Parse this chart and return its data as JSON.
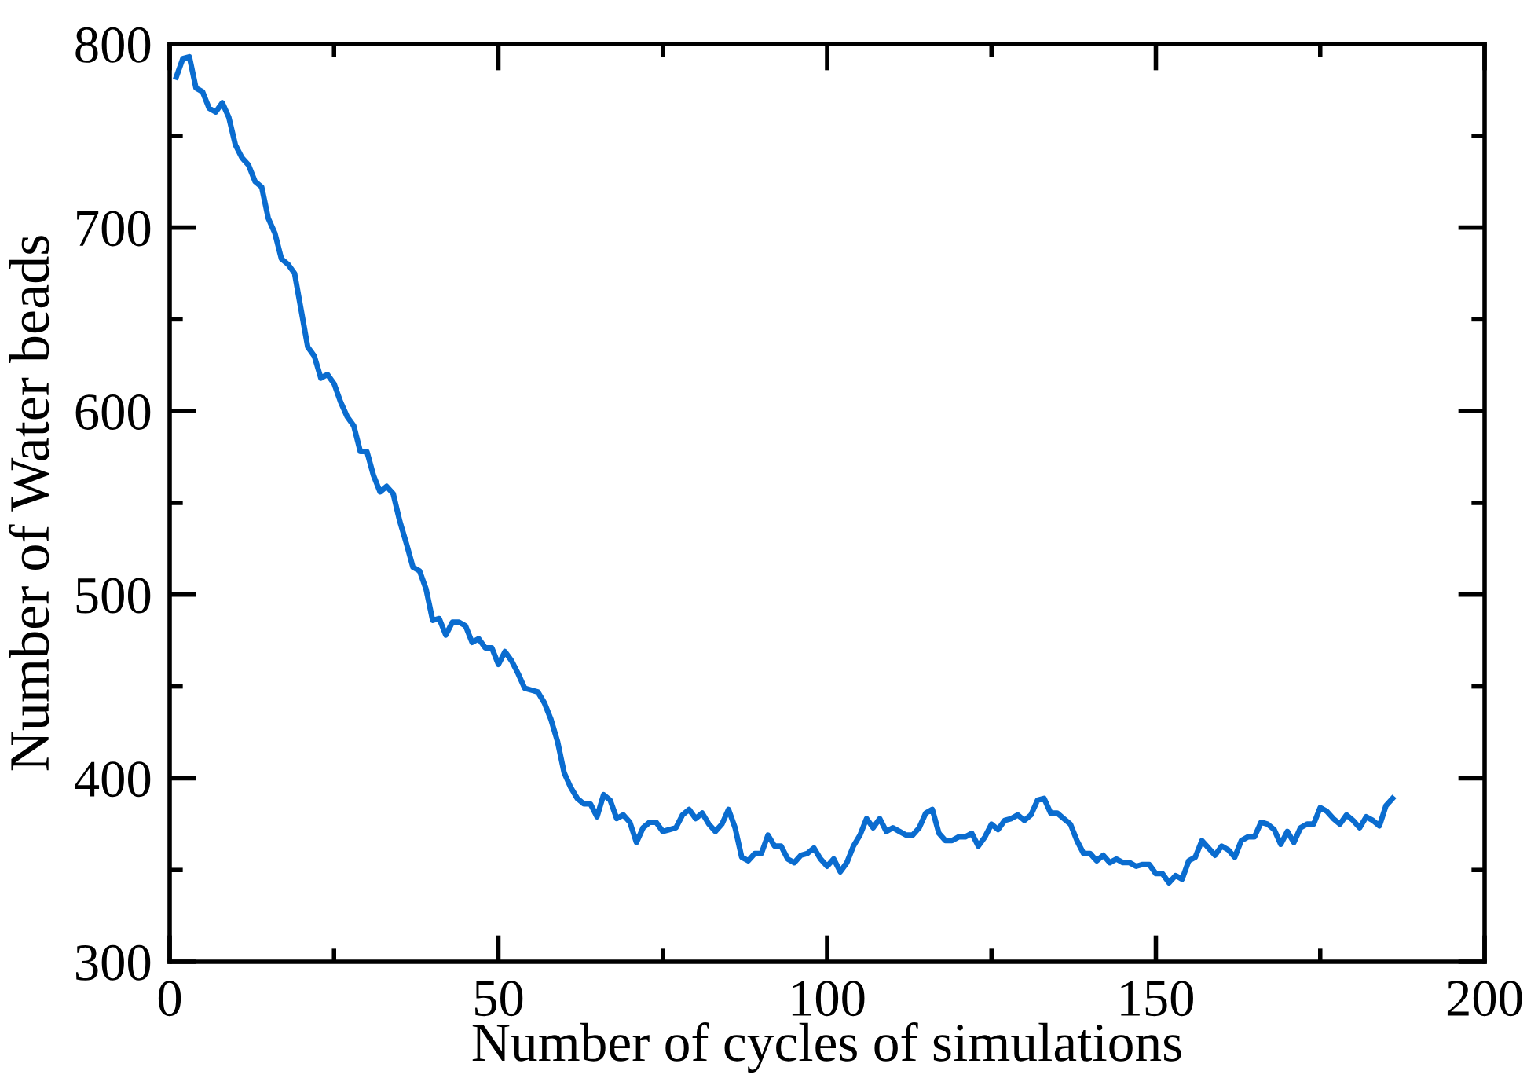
{
  "chart_data": {
    "type": "line",
    "xlabel": "Number of cycles of simulations",
    "ylabel": "Number of Water beads",
    "xlim": [
      0,
      200
    ],
    "ylim": [
      300,
      800
    ],
    "xticks": [
      0,
      {
        "value": 25,
        "label": null
      },
      50,
      {
        "value": 75,
        "label": null
      },
      100,
      {
        "value": 125,
        "label": null
      },
      150,
      {
        "value": 175,
        "label": null
      },
      200
    ],
    "yticks": [
      300,
      {
        "value": 350,
        "label": null
      },
      400,
      {
        "value": 450,
        "label": null
      },
      500,
      {
        "value": 550,
        "label": null
      },
      600,
      {
        "value": 650,
        "label": null
      },
      700,
      {
        "value": 750,
        "label": null
      },
      800
    ],
    "grid": false,
    "legend": false,
    "marker": "none",
    "line_style": "solid",
    "series": [
      {
        "color": "#0a6ccf",
        "x": [
          1,
          2,
          3,
          4,
          5,
          6,
          7,
          8,
          9,
          10,
          11,
          12,
          13,
          14,
          15,
          16,
          17,
          18,
          19,
          20,
          21,
          22,
          23,
          24,
          25,
          26,
          27,
          28,
          29,
          30,
          31,
          32,
          33,
          34,
          35,
          36,
          37,
          38,
          39,
          40,
          41,
          42,
          43,
          44,
          45,
          46,
          47,
          48,
          49,
          50,
          51,
          52,
          53,
          54,
          55,
          56,
          57,
          58,
          59,
          60,
          61,
          62,
          63,
          64,
          65,
          66,
          67,
          68,
          69,
          70,
          71,
          72,
          73,
          74,
          75,
          76,
          77,
          78,
          79,
          80,
          81,
          82,
          83,
          84,
          85,
          86,
          87,
          88,
          89,
          90,
          91,
          92,
          93,
          94,
          95,
          96,
          97,
          98,
          99,
          100,
          101,
          102,
          103,
          104,
          105,
          106,
          107,
          108,
          109,
          110,
          111,
          112,
          113,
          114,
          115,
          116,
          117,
          118,
          119,
          120,
          121,
          122,
          123,
          124,
          125,
          126,
          127,
          128,
          129,
          130,
          131,
          132,
          133,
          134,
          135,
          136,
          137,
          138,
          139,
          140,
          141,
          142,
          143,
          144,
          145,
          146,
          147,
          148,
          149,
          150,
          151,
          152,
          153,
          154,
          155,
          156,
          157,
          158,
          159,
          160,
          161,
          162,
          163,
          164,
          165,
          166,
          167,
          168,
          169,
          170,
          171,
          172,
          173,
          174,
          175,
          176,
          177,
          178,
          179,
          180,
          181,
          182,
          183,
          184,
          185,
          186
        ],
        "values": [
          782,
          792,
          793,
          776,
          774,
          765,
          763,
          768,
          760,
          745,
          738,
          734,
          725,
          722,
          705,
          697,
          683,
          680,
          675,
          655,
          635,
          630,
          618,
          620,
          615,
          605,
          597,
          592,
          578,
          578,
          565,
          556,
          559,
          555,
          540,
          528,
          515,
          513,
          503,
          486,
          487,
          478,
          485,
          485,
          483,
          474,
          476,
          471,
          471,
          462,
          469,
          464,
          457,
          449,
          448,
          447,
          441,
          432,
          420,
          403,
          395,
          389,
          386,
          386,
          379,
          391,
          388,
          378,
          380,
          376,
          365,
          373,
          376,
          376,
          371,
          372,
          373,
          380,
          383,
          378,
          381,
          375,
          371,
          375,
          383,
          373,
          357,
          355,
          359,
          359,
          369,
          363,
          363,
          356,
          354,
          358,
          359,
          362,
          356,
          352,
          356,
          349,
          354,
          363,
          369,
          378,
          373,
          378,
          371,
          373,
          371,
          369,
          369,
          373,
          381,
          383,
          370,
          366,
          366,
          368,
          368,
          370,
          363,
          368,
          375,
          372,
          377,
          378,
          380,
          377,
          380,
          388,
          389,
          381,
          381,
          378,
          375,
          366,
          359,
          359,
          355,
          358,
          354,
          356,
          354,
          354,
          352,
          353,
          353,
          348,
          348,
          343,
          347,
          345,
          355,
          357,
          366,
          362,
          358,
          363,
          361,
          357,
          366,
          368,
          368,
          376,
          375,
          372,
          364,
          371,
          365,
          373,
          375,
          375,
          384,
          382,
          378,
          375,
          380,
          377,
          373,
          379,
          377,
          374,
          385,
          389
        ]
      }
    ]
  }
}
